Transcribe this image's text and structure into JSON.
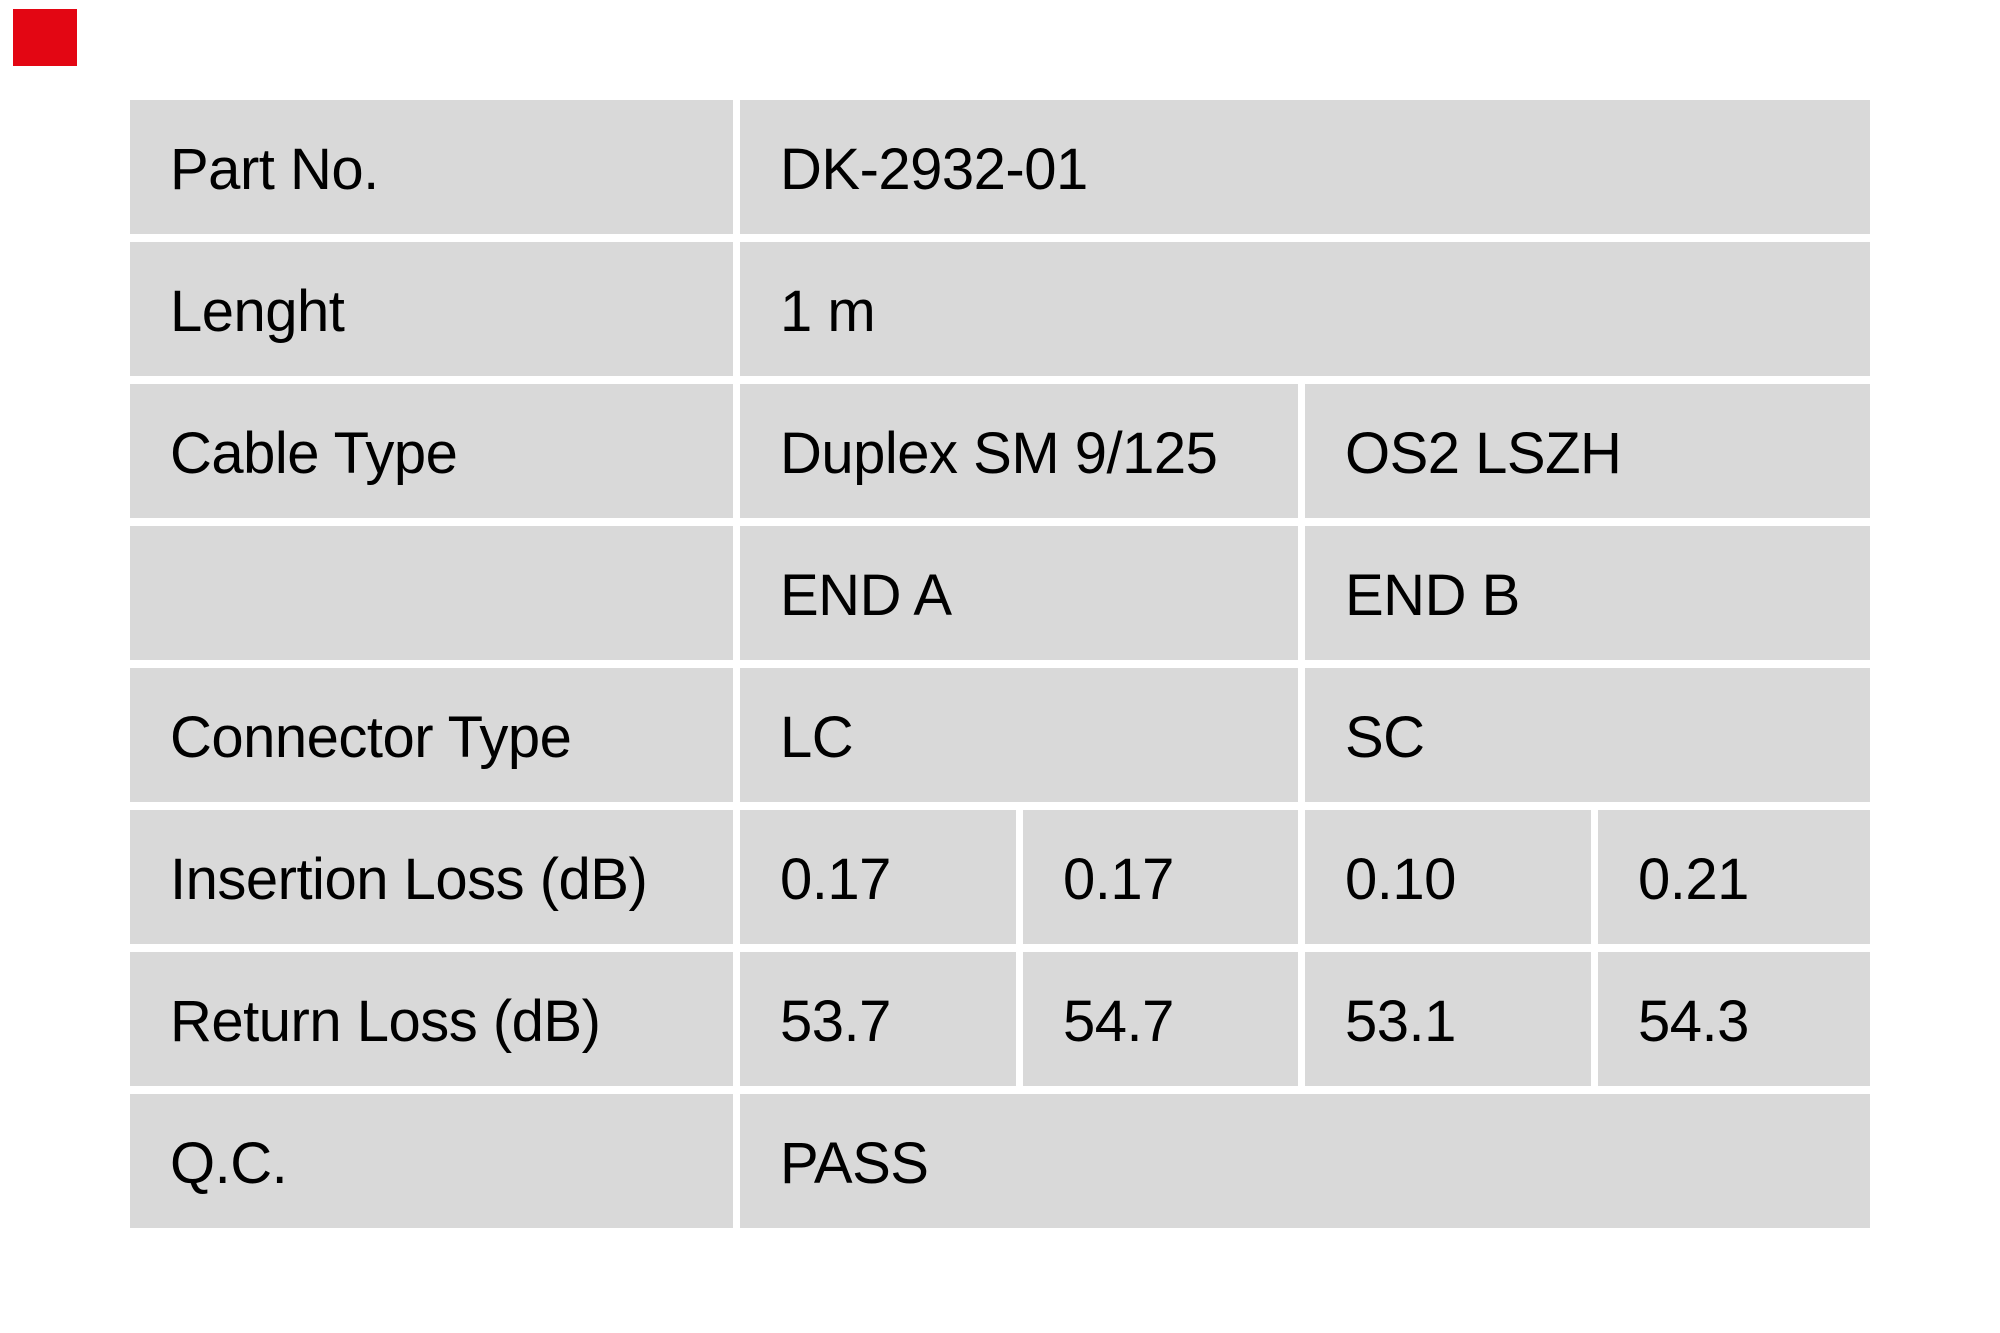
{
  "logo": {
    "name": "red-square-logo",
    "color": "#e30613"
  },
  "table": {
    "colors": {
      "cell_background": "#d9d9d9",
      "gutter": "#ffffff",
      "text": "#000000"
    },
    "rows": [
      {
        "label": "Part No.",
        "values": [
          "DK-2932-01"
        ]
      },
      {
        "label": "Lenght",
        "values": [
          "1 m"
        ]
      },
      {
        "label": "Cable Type",
        "values": [
          "Duplex SM 9/125",
          "OS2 LSZH"
        ]
      },
      {
        "label": "",
        "values": [
          "END A",
          "END B"
        ]
      },
      {
        "label": "Connector Type",
        "values": [
          "LC",
          "SC"
        ]
      },
      {
        "label": "Insertion Loss (dB)",
        "values": [
          "0.17",
          "0.17",
          "0.10",
          "0.21"
        ]
      },
      {
        "label": "Return Loss (dB)",
        "values": [
          "53.7",
          "54.7",
          "53.1",
          "54.3"
        ]
      },
      {
        "label": "Q.C.",
        "values": [
          "PASS"
        ]
      }
    ]
  }
}
